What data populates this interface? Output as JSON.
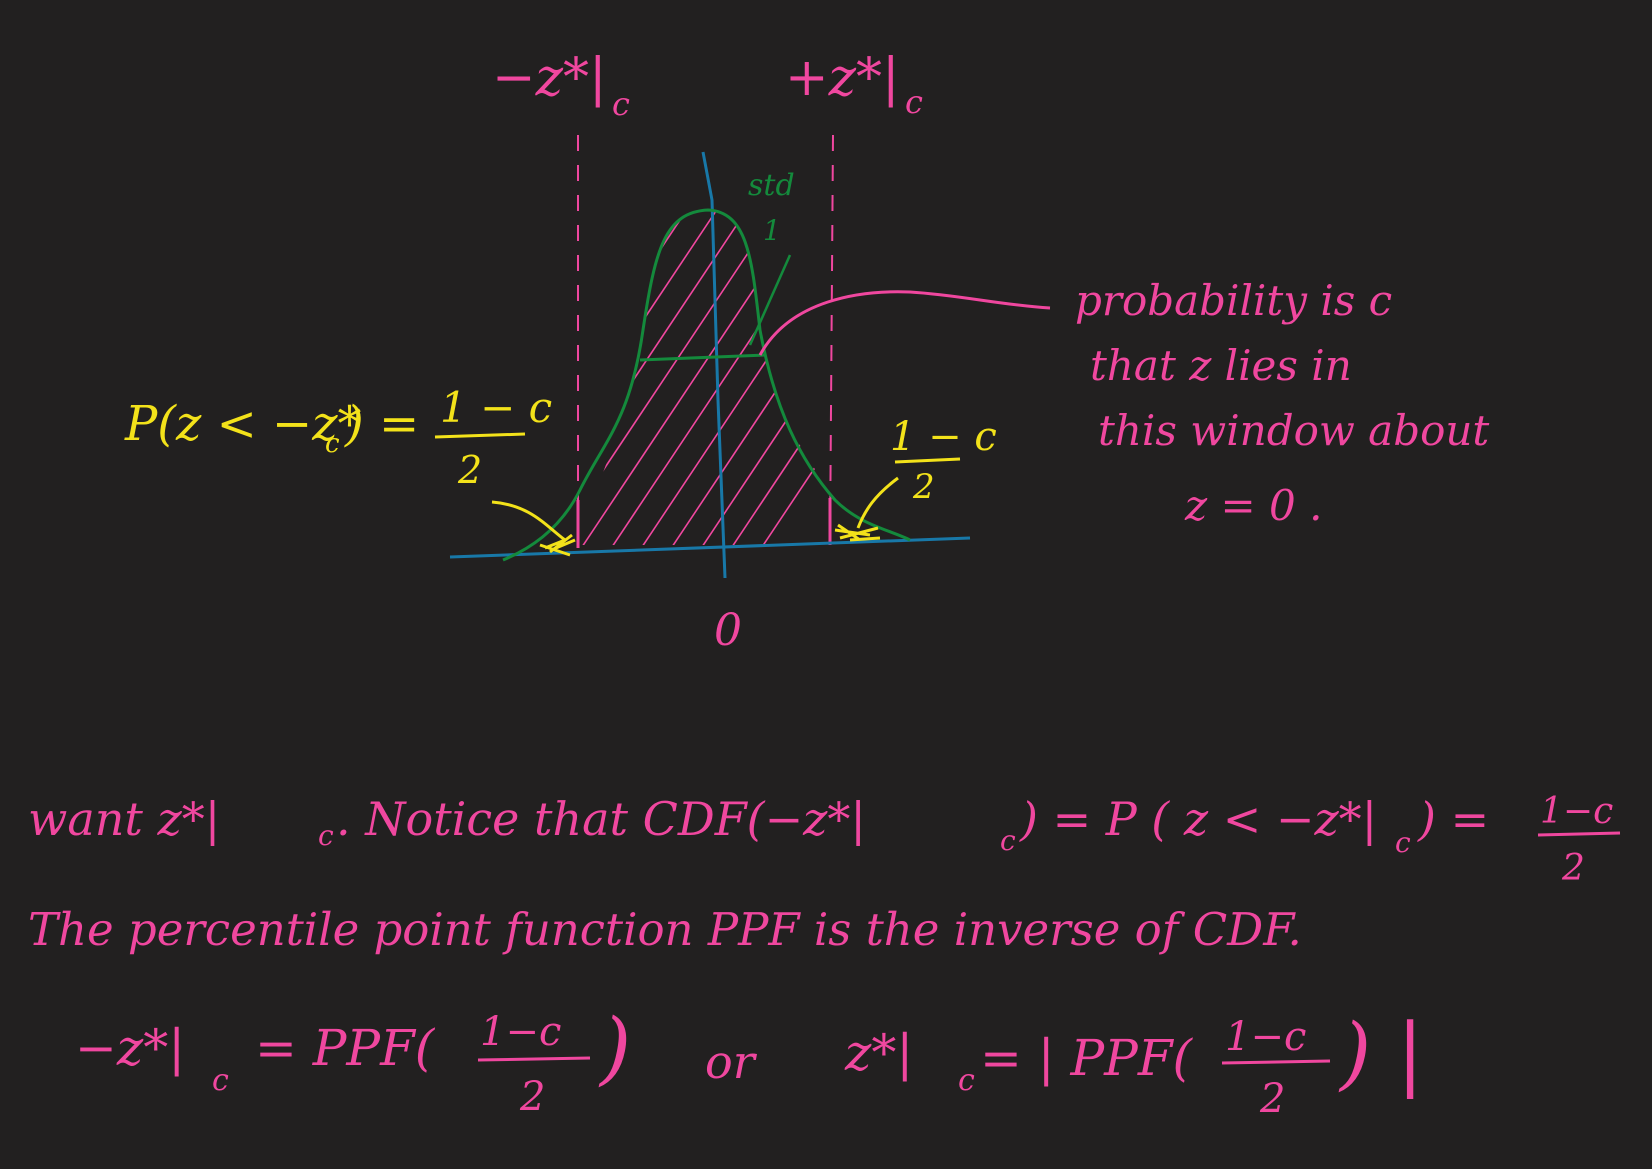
{
  "colors": {
    "background": "#222020",
    "pink": "#f0479f",
    "yellow": "#f3e21a",
    "green": "#148a3c",
    "blue": "#1878a8"
  },
  "diagram": {
    "label_left_bound": "−z*|",
    "label_left_bound_sub": "c",
    "label_right_bound": "+z*|",
    "label_right_bound_sub": "c",
    "label_std": "std",
    "label_std_value": "1",
    "label_origin": "0",
    "left_tail_lhs": "P(z < −z*",
    "left_tail_lhs_sub": "c",
    "left_tail_lhs_close": ") =",
    "left_tail_numerator": "1 − c",
    "left_tail_denominator": "2",
    "right_tail_numerator": "1 − c",
    "right_tail_denominator": "2",
    "annotation_line1": "probability is c",
    "annotation_line2": "that z lies in",
    "annotation_line3": "this window about",
    "annotation_line4": "z = 0 ."
  },
  "notes": {
    "line1_a": "want  z*|",
    "line1_a_sub": "c",
    "line1_b": ".  Notice  that  CDF(−z*|",
    "line1_b_sub": "c",
    "line1_c": ") = P ( z < −z*|",
    "line1_c_sub": "c",
    "line1_d": ") =",
    "line1_frac_num": "1−c",
    "line1_frac_den": "2",
    "line2": "The  percentile  point  function  PPF  is  the  inverse  of  CDF.",
    "eq_left": "−z*|",
    "eq_left_sub": "c",
    "eq_left_rhs": "=  PPF(",
    "eq_frac_num": "1−c",
    "eq_frac_den": "2",
    "eq_close": ")",
    "eq_or": "or",
    "eq_right": "z*|",
    "eq_right_sub": "c",
    "eq_right_rhs": "= | PPF(",
    "eq_right_num": "1−c",
    "eq_right_den": "2",
    "eq_right_close": ") |"
  }
}
